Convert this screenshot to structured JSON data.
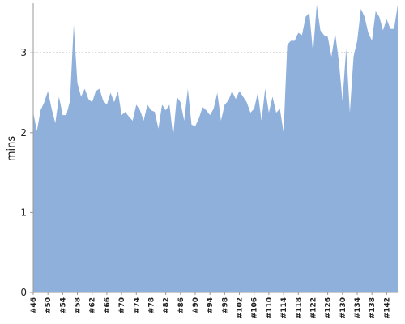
{
  "chart_data": {
    "type": "area",
    "ylabel": "mins",
    "xlabel": "",
    "ylim": [
      0,
      3.6
    ],
    "yticks": [
      0,
      1,
      2,
      3
    ],
    "grid": "horizontal-dashed",
    "fill_color": "#8fb0da",
    "x_start": 46,
    "x_step": 1,
    "xtick_labels": [
      "#46",
      "#50",
      "#54",
      "#58",
      "#62",
      "#66",
      "#70",
      "#74",
      "#78",
      "#82",
      "#86",
      "#90",
      "#94",
      "#98",
      "#102",
      "#106",
      "#110",
      "#114",
      "#118",
      "#122",
      "#126",
      "#130",
      "#134",
      "#138",
      "#142"
    ],
    "values": [
      2.25,
      2.02,
      2.28,
      2.38,
      2.52,
      2.3,
      2.12,
      2.45,
      2.22,
      2.22,
      2.4,
      3.35,
      2.62,
      2.45,
      2.55,
      2.42,
      2.38,
      2.52,
      2.55,
      2.4,
      2.35,
      2.5,
      2.38,
      2.52,
      2.22,
      2.26,
      2.2,
      2.15,
      2.35,
      2.28,
      2.15,
      2.35,
      2.28,
      2.26,
      2.05,
      2.35,
      2.28,
      2.35,
      1.95,
      2.45,
      2.38,
      2.15,
      2.55,
      2.1,
      2.08,
      2.18,
      2.32,
      2.28,
      2.22,
      2.3,
      2.5,
      2.15,
      2.35,
      2.4,
      2.52,
      2.42,
      2.52,
      2.45,
      2.38,
      2.25,
      2.3,
      2.5,
      2.15,
      2.55,
      2.25,
      2.45,
      2.25,
      2.3,
      2.0,
      3.1,
      3.15,
      3.15,
      3.25,
      3.22,
      3.45,
      3.5,
      3.0,
      3.6,
      3.28,
      3.22,
      3.2,
      2.95,
      3.25,
      2.9,
      2.4,
      3.05,
      2.25,
      2.95,
      3.15,
      3.55,
      3.45,
      3.25,
      3.15,
      3.52,
      3.45,
      3.28,
      3.42,
      3.3,
      3.3,
      3.6
    ]
  }
}
